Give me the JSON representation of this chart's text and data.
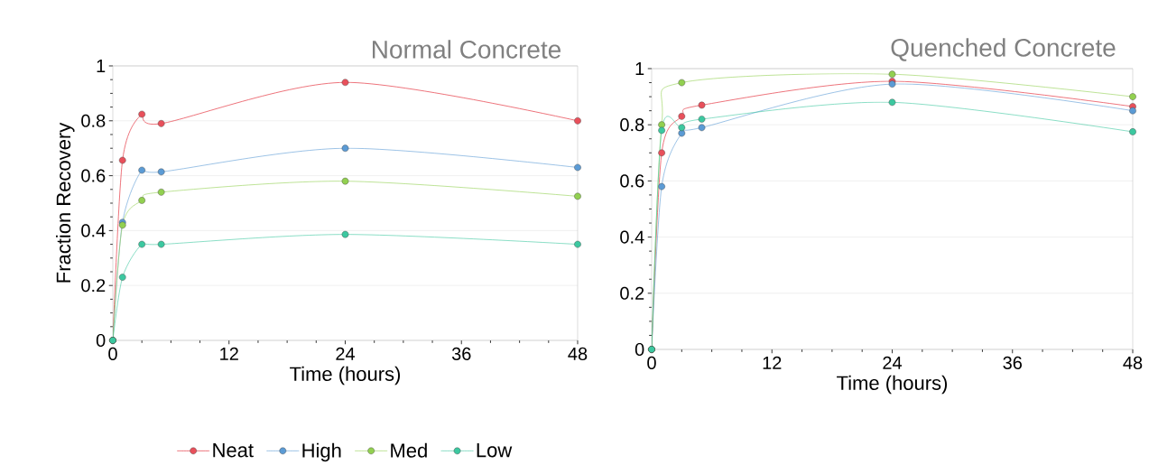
{
  "chart_data": [
    {
      "type": "line",
      "title": "Normal Concrete",
      "xlabel": "Time (hours)",
      "ylabel": "Fraction Recovery",
      "x": [
        0,
        1,
        3,
        5,
        24,
        48
      ],
      "xlim": [
        0,
        48
      ],
      "xticks": [
        0,
        12,
        24,
        36,
        48
      ],
      "ylim": [
        0,
        1
      ],
      "yticks": [
        0,
        0.2,
        0.4,
        0.6,
        0.8,
        1
      ],
      "grid": "y",
      "legend": "bottom",
      "marker": "circle",
      "line_style": "solid",
      "series": [
        {
          "name": "Neat",
          "color": "#e8505b",
          "values": [
            0,
            0.656,
            0.824,
            0.79,
            0.94,
            0.8
          ]
        },
        {
          "name": "High",
          "color": "#5b9bd5",
          "values": [
            0,
            0.43,
            0.62,
            0.614,
            0.7,
            0.63
          ]
        },
        {
          "name": "Med",
          "color": "#92d050",
          "values": [
            0,
            0.42,
            0.51,
            0.54,
            0.58,
            0.525
          ]
        },
        {
          "name": "Low",
          "color": "#3cc8a0",
          "values": [
            0,
            0.23,
            0.35,
            0.35,
            0.386,
            0.35
          ]
        }
      ]
    },
    {
      "type": "line",
      "title": "Quenched Concrete",
      "xlabel": "Time (hours)",
      "x": [
        0,
        1,
        3,
        5,
        24,
        48
      ],
      "xlim": [
        0,
        48
      ],
      "xticks": [
        0,
        12,
        24,
        36,
        48
      ],
      "ylim": [
        0,
        1
      ],
      "yticks": [
        0,
        0.2,
        0.4,
        0.6,
        0.8,
        1
      ],
      "grid": "y",
      "marker": "circle",
      "line_style": "solid",
      "series": [
        {
          "color": "#e8505b",
          "values": [
            0,
            0.7,
            0.83,
            0.87,
            0.955,
            0.865
          ]
        },
        {
          "color": "#5b9bd5",
          "values": [
            0,
            0.58,
            0.77,
            0.79,
            0.945,
            0.85
          ]
        },
        {
          "color": "#92d050",
          "x": [
            0,
            1,
            3,
            24,
            48
          ],
          "values": [
            0,
            0.8,
            0.95,
            0.98,
            0.9
          ]
        },
        {
          "color": "#3cc8a0",
          "values": [
            0,
            0.78,
            0.79,
            0.82,
            0.88,
            0.775
          ]
        }
      ]
    }
  ]
}
